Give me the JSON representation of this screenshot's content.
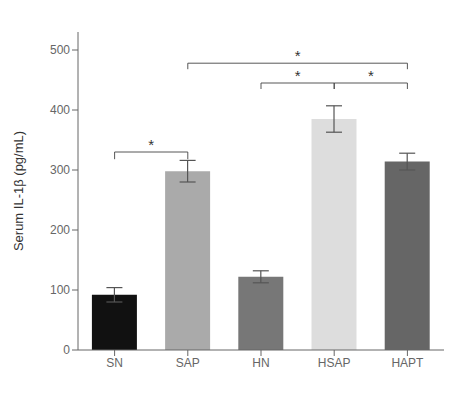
{
  "chart_data": {
    "type": "bar",
    "categories": [
      "SN",
      "SAP",
      "HN",
      "HSAP",
      "HAPT"
    ],
    "values": [
      92,
      298,
      122,
      385,
      314
    ],
    "errors": [
      12,
      18,
      10,
      22,
      14
    ],
    "colors": [
      "#111111",
      "#aaaaaa",
      "#777777",
      "#dddddd",
      "#666666"
    ],
    "ylabel": "Serum IL-1β (pg/mL)",
    "ylim": [
      0,
      530
    ],
    "yticks": [
      0,
      100,
      200,
      300,
      400,
      500
    ],
    "grid": false,
    "brackets": [
      {
        "from": "SN",
        "to": "SAP",
        "y_base": 318,
        "y_tip": 330,
        "label": "*"
      },
      {
        "from": "SAP",
        "to": "HAPT",
        "y_base": 468,
        "y_tip": 478,
        "label": "*"
      },
      {
        "from": "HN",
        "to": "HSAP",
        "y_base": 435,
        "y_tip": 445,
        "label": "*"
      },
      {
        "from": "HSAP",
        "to": "HAPT",
        "y_base": 435,
        "y_tip": 445,
        "label": "*"
      }
    ]
  }
}
